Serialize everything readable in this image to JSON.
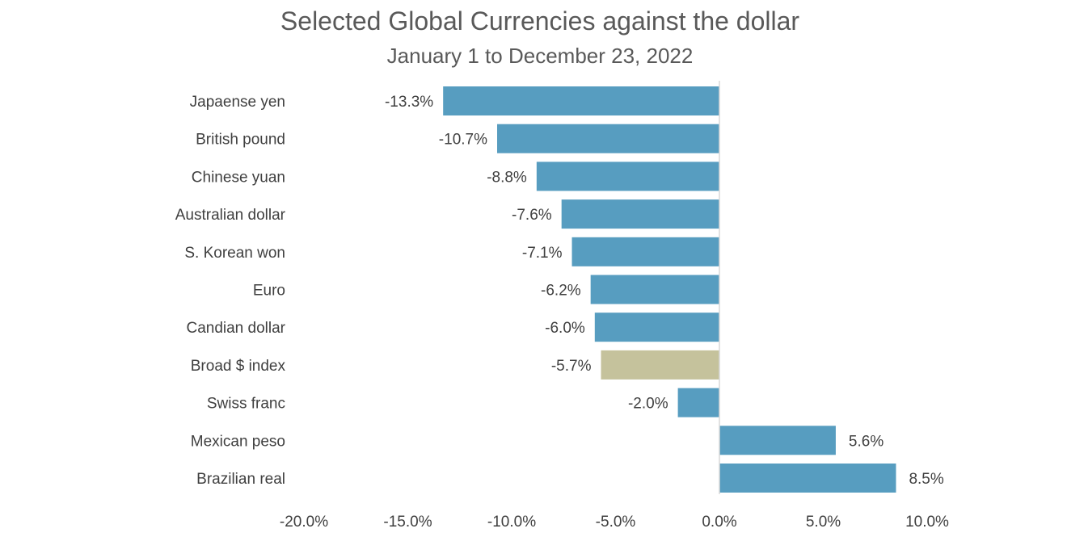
{
  "chart_data": {
    "type": "bar",
    "orientation": "horizontal",
    "title": "Selected Global Currencies against the dollar",
    "subtitle": "January 1 to December 23, 2022",
    "categories": [
      "Japaense yen",
      "British pound",
      "Chinese yuan",
      "Australian dollar",
      "S. Korean won",
      "Euro",
      "Candian dollar",
      "Broad $ index",
      "Swiss franc",
      "Mexican peso",
      "Brazilian real"
    ],
    "values": [
      -13.3,
      -10.7,
      -8.8,
      -7.6,
      -7.1,
      -6.2,
      -6.0,
      -5.7,
      -2.0,
      5.6,
      8.5
    ],
    "labels": [
      "-13.3%",
      "-10.7%",
      "-8.8%",
      "-7.6%",
      "-7.1%",
      "-6.2%",
      "-6.0%",
      "-5.7%",
      "-2.0%",
      "5.6%",
      "8.5%"
    ],
    "bar_colors": [
      "#579dc0",
      "#579dc0",
      "#579dc0",
      "#579dc0",
      "#579dc0",
      "#579dc0",
      "#579dc0",
      "#c5c29c",
      "#579dc0",
      "#579dc0",
      "#579dc0"
    ],
    "xlim": [
      -20,
      10
    ],
    "xticks": [
      -20,
      -15,
      -10,
      -5,
      0,
      5,
      10
    ],
    "xtick_labels": [
      "-20.0%",
      "-15.0%",
      "-10.0%",
      "-5.0%",
      "0.0%",
      "5.0%",
      "10.0%"
    ],
    "xlabel": "",
    "ylabel": "",
    "grid": false,
    "legend": "none"
  }
}
